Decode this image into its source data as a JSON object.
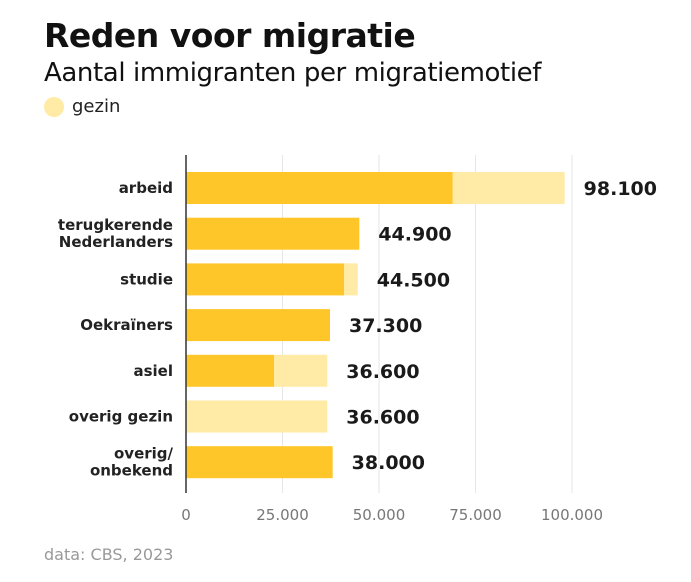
{
  "title": "Reden voor migratie",
  "subtitle": "Aantal immigranten per migratiemotief",
  "source": "data: CBS, 2023",
  "colors": {
    "main": "#FFC629",
    "gezin": "#FFEAA6"
  },
  "chart_data": {
    "type": "bar",
    "orientation": "horizontal",
    "stacked": true,
    "title": "Reden voor migratie",
    "subtitle": "Aantal immigranten per migratiemotief",
    "legend": {
      "entries": [
        "gezin"
      ],
      "placement": "top-left"
    },
    "categories": [
      [
        "arbeid"
      ],
      [
        "terugkerende",
        "Nederlanders"
      ],
      [
        "studie"
      ],
      [
        "Oekraïners"
      ],
      [
        "asiel"
      ],
      [
        "overig gezin"
      ],
      [
        "overig/",
        "onbekend"
      ]
    ],
    "series": [
      {
        "values": [
          69100,
          44900,
          41000,
          37300,
          22800,
          0,
          38000
        ]
      },
      {
        "name": "gezin",
        "values": [
          29000,
          0,
          3500,
          0,
          13800,
          36600,
          0
        ]
      }
    ],
    "totals": [
      98100,
      44900,
      44500,
      37300,
      36600,
      36600,
      38000
    ],
    "data_labels": [
      "98.100",
      "44.900",
      "44.500",
      "37.300",
      "36.600",
      "36.600",
      "38.000"
    ],
    "xlim": [
      0,
      100000
    ],
    "xticks": [
      0,
      25000,
      50000,
      75000,
      100000
    ],
    "xtick_labels": [
      "0",
      "25.000",
      "50.000",
      "75.000",
      "100.000"
    ],
    "grid": "vertical"
  }
}
